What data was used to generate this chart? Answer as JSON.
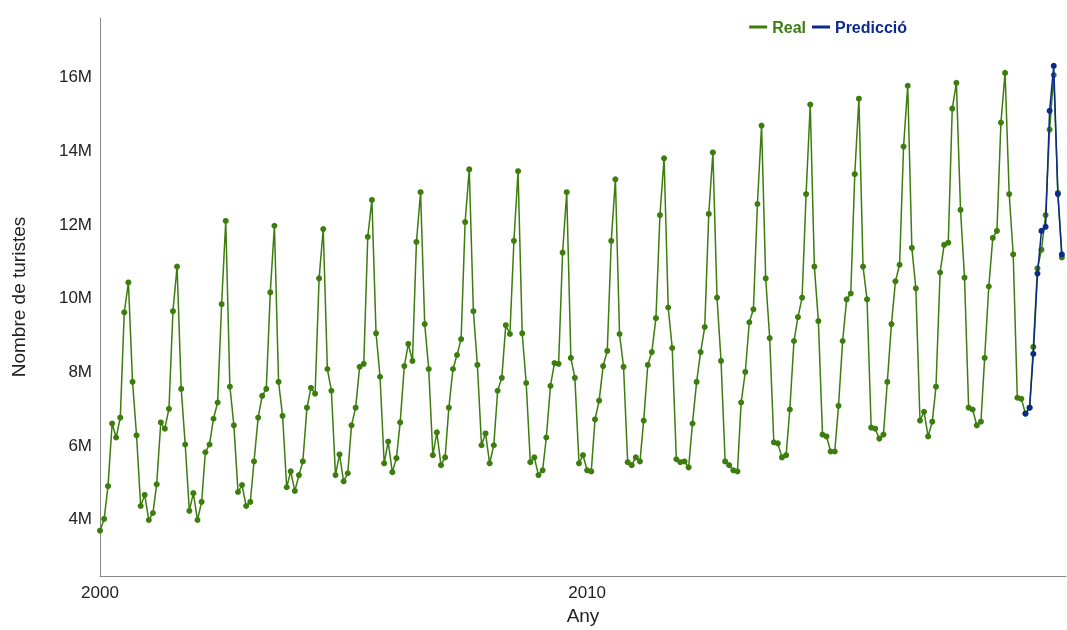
{
  "chart_data": {
    "type": "line",
    "xlabel": "Any",
    "ylabel": "Nombre de turistes",
    "marker": "circle",
    "line_style": "solid",
    "grid": false,
    "legend": "top right",
    "xlim": [
      "2000-01",
      "2019-11"
    ],
    "xticks": [
      "2000",
      "2010"
    ],
    "ylim": [
      2450000,
      17600000
    ],
    "yticks": [
      {
        "value": 4000000,
        "label": "4M"
      },
      {
        "value": 6000000,
        "label": "6M"
      },
      {
        "value": 8000000,
        "label": "8M"
      },
      {
        "value": 10000000,
        "label": "10M"
      },
      {
        "value": 12000000,
        "label": "12M"
      },
      {
        "value": 14000000,
        "label": "14M"
      },
      {
        "value": 16000000,
        "label": "16M"
      }
    ],
    "x": [
      "2000-01",
      "2000-02",
      "2000-03",
      "2000-04",
      "2000-05",
      "2000-06",
      "2000-07",
      "2000-08",
      "2000-09",
      "2000-10",
      "2000-11",
      "2000-12",
      "2001-01",
      "2001-02",
      "2001-03",
      "2001-04",
      "2001-05",
      "2001-06",
      "2001-07",
      "2001-08",
      "2001-09",
      "2001-10",
      "2001-11",
      "2001-12",
      "2002-01",
      "2002-02",
      "2002-03",
      "2002-04",
      "2002-05",
      "2002-06",
      "2002-07",
      "2002-08",
      "2002-09",
      "2002-10",
      "2002-11",
      "2002-12",
      "2003-01",
      "2003-02",
      "2003-03",
      "2003-04",
      "2003-05",
      "2003-06",
      "2003-07",
      "2003-08",
      "2003-09",
      "2003-10",
      "2003-11",
      "2003-12",
      "2004-01",
      "2004-02",
      "2004-03",
      "2004-04",
      "2004-05",
      "2004-06",
      "2004-07",
      "2004-08",
      "2004-09",
      "2004-10",
      "2004-11",
      "2004-12",
      "2005-01",
      "2005-02",
      "2005-03",
      "2005-04",
      "2005-05",
      "2005-06",
      "2005-07",
      "2005-08",
      "2005-09",
      "2005-10",
      "2005-11",
      "2005-12",
      "2006-01",
      "2006-02",
      "2006-03",
      "2006-04",
      "2006-05",
      "2006-06",
      "2006-07",
      "2006-08",
      "2006-09",
      "2006-10",
      "2006-11",
      "2006-12",
      "2007-01",
      "2007-02",
      "2007-03",
      "2007-04",
      "2007-05",
      "2007-06",
      "2007-07",
      "2007-08",
      "2007-09",
      "2007-10",
      "2007-11",
      "2007-12",
      "2008-01",
      "2008-02",
      "2008-03",
      "2008-04",
      "2008-05",
      "2008-06",
      "2008-07",
      "2008-08",
      "2008-09",
      "2008-10",
      "2008-11",
      "2008-12",
      "2009-01",
      "2009-02",
      "2009-03",
      "2009-04",
      "2009-05",
      "2009-06",
      "2009-07",
      "2009-08",
      "2009-09",
      "2009-10",
      "2009-11",
      "2009-12",
      "2010-01",
      "2010-02",
      "2010-03",
      "2010-04",
      "2010-05",
      "2010-06",
      "2010-07",
      "2010-08",
      "2010-09",
      "2010-10",
      "2010-11",
      "2010-12",
      "2011-01",
      "2011-02",
      "2011-03",
      "2011-04",
      "2011-05",
      "2011-06",
      "2011-07",
      "2011-08",
      "2011-09",
      "2011-10",
      "2011-11",
      "2011-12",
      "2012-01",
      "2012-02",
      "2012-03",
      "2012-04",
      "2012-05",
      "2012-06",
      "2012-07",
      "2012-08",
      "2012-09",
      "2012-10",
      "2012-11",
      "2012-12",
      "2013-01",
      "2013-02",
      "2013-03",
      "2013-04",
      "2013-05",
      "2013-06",
      "2013-07",
      "2013-08",
      "2013-09",
      "2013-10",
      "2013-11",
      "2013-12",
      "2014-01",
      "2014-02",
      "2014-03",
      "2014-04",
      "2014-05",
      "2014-06",
      "2014-07",
      "2014-08",
      "2014-09",
      "2014-10",
      "2014-11",
      "2014-12",
      "2015-01",
      "2015-02",
      "2015-03",
      "2015-04",
      "2015-05",
      "2015-06",
      "2015-07",
      "2015-08",
      "2015-09",
      "2015-10",
      "2015-11",
      "2015-12",
      "2016-01",
      "2016-02",
      "2016-03",
      "2016-04",
      "2016-05",
      "2016-06",
      "2016-07",
      "2016-08",
      "2016-09",
      "2016-10",
      "2016-11",
      "2016-12",
      "2017-01",
      "2017-02",
      "2017-03",
      "2017-04",
      "2017-05",
      "2017-06",
      "2017-07",
      "2017-08",
      "2017-09",
      "2017-10",
      "2017-11",
      "2017-12",
      "2018-01",
      "2018-02",
      "2018-03",
      "2018-04",
      "2018-05",
      "2018-06",
      "2018-07",
      "2018-08",
      "2018-09",
      "2018-10",
      "2018-11",
      "2018-12",
      "2019-01",
      "2019-02",
      "2019-03",
      "2019-04",
      "2019-05",
      "2019-06",
      "2019-07",
      "2019-08",
      "2019-09",
      "2019-10"
    ],
    "series": [
      {
        "name": "Real",
        "color": "#3c7d0e",
        "values": [
          3680000,
          4000000,
          4890000,
          6590000,
          6210000,
          6750000,
          9610000,
          10420000,
          7720000,
          6270000,
          4350000,
          4650000,
          3970000,
          4160000,
          4940000,
          6620000,
          6450000,
          6990000,
          9640000,
          10850000,
          7530000,
          6020000,
          4220000,
          4700000,
          3970000,
          4460000,
          5810000,
          6020000,
          6720000,
          7160000,
          9830000,
          12090000,
          7590000,
          6540000,
          4730000,
          4920000,
          4350000,
          4460000,
          5560000,
          6750000,
          7340000,
          7530000,
          10150000,
          11960000,
          7720000,
          6800000,
          4860000,
          5290000,
          4760000,
          5190000,
          5560000,
          7020000,
          7560000,
          7400000,
          10530000,
          11870000,
          8070000,
          7480000,
          5190000,
          5750000,
          5020000,
          5240000,
          6540000,
          7020000,
          8130000,
          8210000,
          11660000,
          12660000,
          9040000,
          7860000,
          5510000,
          6100000,
          5270000,
          5650000,
          6620000,
          8150000,
          8750000,
          8290000,
          11520000,
          12870000,
          9290000,
          8070000,
          5730000,
          6350000,
          5460000,
          5670000,
          7020000,
          8070000,
          8450000,
          8880000,
          12060000,
          13490000,
          9640000,
          8180000,
          6000000,
          6320000,
          5510000,
          6000000,
          7480000,
          7830000,
          9260000,
          9020000,
          11550000,
          13440000,
          9040000,
          7690000,
          5540000,
          5670000,
          5190000,
          5320000,
          6210000,
          7610000,
          8230000,
          8210000,
          11230000,
          12870000,
          8370000,
          7830000,
          5510000,
          5730000,
          5320000,
          5290000,
          6700000,
          7210000,
          8150000,
          8560000,
          11550000,
          13220000,
          9020000,
          8130000,
          5540000,
          5460000,
          5670000,
          5560000,
          6670000,
          8180000,
          8530000,
          9450000,
          12250000,
          13790000,
          9740000,
          8640000,
          5620000,
          5540000,
          5560000,
          5400000,
          6590000,
          7720000,
          8530000,
          9210000,
          12280000,
          13950000,
          10010000,
          8290000,
          5560000,
          5460000,
          5320000,
          5290000,
          7160000,
          7990000,
          9340000,
          9690000,
          12550000,
          14680000,
          10530000,
          8910000,
          6080000,
          6050000,
          5670000,
          5730000,
          6970000,
          8830000,
          9480000,
          10010000,
          12820000,
          15250000,
          10850000,
          9370000,
          6290000,
          6240000,
          5830000,
          5830000,
          7070000,
          8830000,
          9960000,
          10120000,
          13360000,
          15410000,
          10850000,
          9960000,
          6480000,
          6450000,
          6180000,
          6290000,
          7720000,
          9290000,
          10450000,
          10900000,
          14110000,
          15760000,
          11360000,
          10260000,
          6670000,
          6910000,
          6240000,
          6640000,
          7590000,
          10690000,
          11440000,
          11500000,
          15140000,
          15840000,
          12390000,
          10550000,
          7020000,
          6970000,
          6540000,
          6640000,
          8370000,
          10310000,
          11630000,
          11820000,
          14760000,
          16110000,
          12820000,
          11180000,
          7290000,
          7260000,
          6860000,
          7020000,
          8670000,
          10800000,
          11310000,
          12250000,
          14570000,
          16050000,
          12850000,
          11100000
        ]
      },
      {
        "name": "Predicció",
        "color": "#0b2a8c",
        "x": [
          "2019-01",
          "2019-02",
          "2019-03",
          "2019-04",
          "2019-05",
          "2019-06",
          "2019-07",
          "2019-08",
          "2019-09",
          "2019-10"
        ],
        "values": [
          6860000,
          7020000,
          8480000,
          10660000,
          11820000,
          11930000,
          15080000,
          16300000,
          12820000,
          11180000
        ]
      }
    ]
  }
}
